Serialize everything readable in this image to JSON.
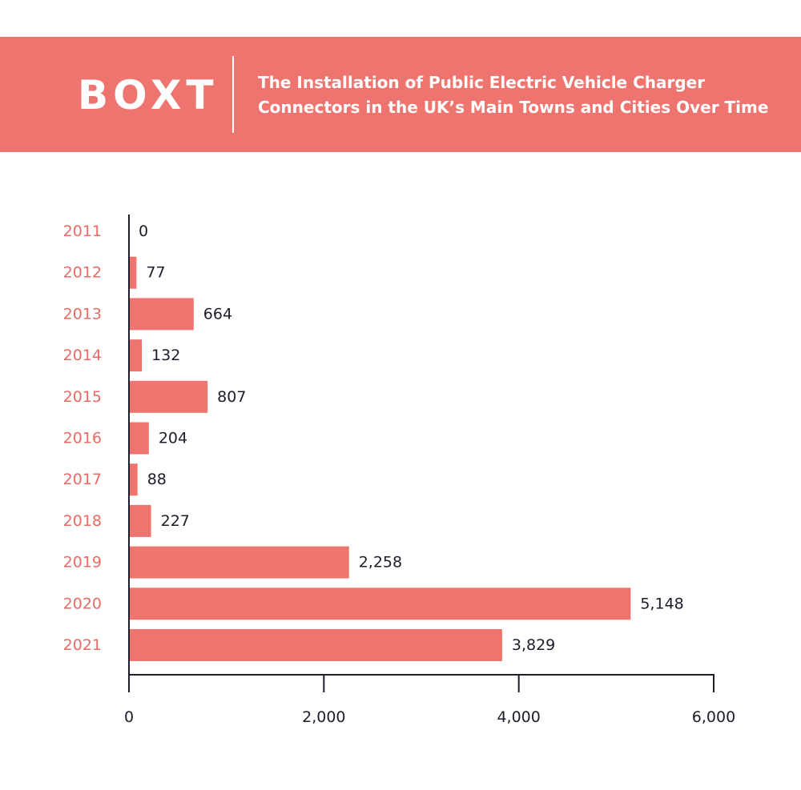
{
  "header": {
    "logo": "BOXT",
    "title_line1": "The Installation of Public Electric Vehicle Charger",
    "title_line2": "Connectors in the UK’s Main Towns and Cities Over Time"
  },
  "colors": {
    "accent": "#ee756f",
    "category_label": "#e86a64",
    "value_label": "#1d1d2b",
    "axis": "#1d1d2b"
  },
  "chart_data": {
    "type": "bar",
    "orientation": "horizontal",
    "title": "The Installation of Public Electric Vehicle Charger Connectors in the UK’s Main Towns and Cities Over Time",
    "categories": [
      "2011",
      "2012",
      "2013",
      "2014",
      "2015",
      "2016",
      "2017",
      "2018",
      "2019",
      "2020",
      "2021"
    ],
    "values": [
      0,
      77,
      664,
      132,
      807,
      204,
      88,
      227,
      2258,
      5148,
      3829
    ],
    "value_labels": [
      "0",
      "77",
      "664",
      "132",
      "807",
      "204",
      "88",
      "227",
      "2,258",
      "5,148",
      "3,829"
    ],
    "xlim": [
      0,
      6000
    ],
    "xticks": [
      0,
      2000,
      4000,
      6000
    ],
    "xtick_labels": [
      "0",
      "2,000",
      "4,000",
      "6,000"
    ],
    "xlabel": "",
    "ylabel": "",
    "grid": false,
    "legend": "none"
  }
}
